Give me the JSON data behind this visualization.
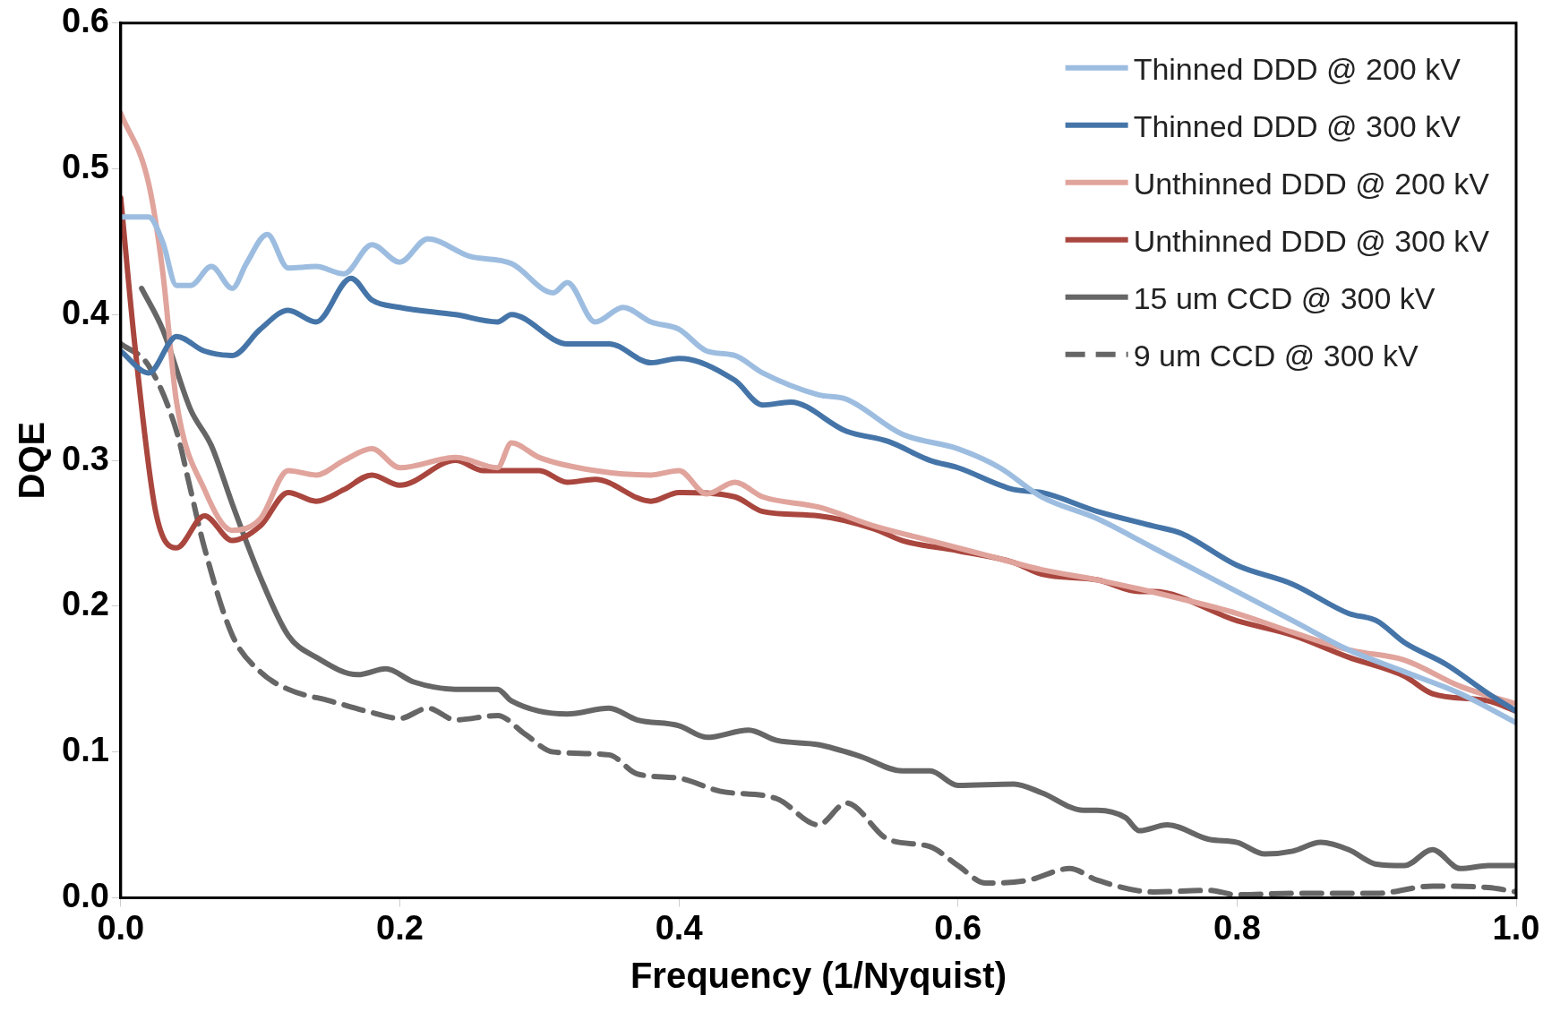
{
  "chart_data": {
    "type": "line",
    "xlabel": "Frequency (1/Nyquist)",
    "ylabel": "DQE",
    "xlim": [
      0,
      1
    ],
    "ylim": [
      0,
      0.6
    ],
    "xticks": [
      {
        "value": 0,
        "label": "0.0"
      },
      0.2,
      0.4,
      0.6,
      0.8,
      {
        "value": 1,
        "label": "1.0"
      }
    ],
    "yticks": [
      {
        "value": 0,
        "label": "0.0"
      },
      0.1,
      0.2,
      0.3,
      0.4,
      0.5,
      0.6
    ],
    "grid": false,
    "legend": "top right",
    "marker": "none",
    "series": [
      {
        "name": "Thinned DDD @ 200 kV",
        "color": "#9dbde0",
        "x": [
          0,
          0.02,
          0.03,
          0.04,
          0.05,
          0.065,
          0.08,
          0.09,
          0.105,
          0.12,
          0.14,
          0.16,
          0.18,
          0.2,
          0.22,
          0.25,
          0.28,
          0.31,
          0.32,
          0.34,
          0.36,
          0.38,
          0.4,
          0.42,
          0.44,
          0.46,
          0.5,
          0.52,
          0.56,
          0.6,
          0.63,
          0.66,
          0.7,
          0.74,
          0.78,
          0.8,
          0.84,
          0.88,
          0.92,
          0.96,
          1.0
        ],
        "values": [
          0.467,
          0.467,
          0.45,
          0.42,
          0.42,
          0.433,
          0.418,
          0.435,
          0.455,
          0.432,
          0.433,
          0.428,
          0.448,
          0.436,
          0.452,
          0.44,
          0.435,
          0.415,
          0.422,
          0.395,
          0.405,
          0.395,
          0.39,
          0.375,
          0.372,
          0.36,
          0.345,
          0.342,
          0.318,
          0.308,
          0.295,
          0.275,
          0.26,
          0.24,
          0.22,
          0.21,
          0.19,
          0.17,
          0.155,
          0.14,
          0.12
        ]
      },
      {
        "name": "Thinned DDD @ 300 kV",
        "color": "#4575a8",
        "x": [
          0,
          0.02,
          0.04,
          0.06,
          0.08,
          0.1,
          0.12,
          0.14,
          0.165,
          0.18,
          0.2,
          0.24,
          0.27,
          0.28,
          0.32,
          0.35,
          0.38,
          0.4,
          0.44,
          0.46,
          0.48,
          0.52,
          0.55,
          0.58,
          0.6,
          0.64,
          0.66,
          0.7,
          0.74,
          0.76,
          0.8,
          0.84,
          0.88,
          0.9,
          0.92,
          0.95,
          0.98,
          1.0
        ],
        "values": [
          0.375,
          0.36,
          0.385,
          0.375,
          0.372,
          0.39,
          0.403,
          0.395,
          0.425,
          0.41,
          0.405,
          0.4,
          0.395,
          0.4,
          0.38,
          0.38,
          0.367,
          0.37,
          0.355,
          0.338,
          0.34,
          0.32,
          0.313,
          0.3,
          0.295,
          0.28,
          0.278,
          0.265,
          0.255,
          0.25,
          0.228,
          0.215,
          0.195,
          0.19,
          0.175,
          0.16,
          0.14,
          0.128
        ]
      },
      {
        "name": "Unthinned DDD @ 200 kV",
        "color": "#e0a49c",
        "x": [
          0,
          0.02,
          0.03,
          0.04,
          0.06,
          0.08,
          0.1,
          0.12,
          0.14,
          0.16,
          0.18,
          0.2,
          0.24,
          0.27,
          0.28,
          0.3,
          0.34,
          0.38,
          0.4,
          0.42,
          0.44,
          0.46,
          0.5,
          0.54,
          0.58,
          0.62,
          0.66,
          0.7,
          0.76,
          0.8,
          0.84,
          0.88,
          0.92,
          0.96,
          1.0
        ],
        "values": [
          0.538,
          0.49,
          0.43,
          0.34,
          0.28,
          0.252,
          0.26,
          0.293,
          0.29,
          0.3,
          0.308,
          0.295,
          0.302,
          0.295,
          0.312,
          0.302,
          0.293,
          0.29,
          0.293,
          0.277,
          0.285,
          0.275,
          0.268,
          0.255,
          0.245,
          0.235,
          0.225,
          0.218,
          0.205,
          0.195,
          0.182,
          0.17,
          0.163,
          0.145,
          0.133
        ]
      },
      {
        "name": "Unthinned DDD @ 300 kV",
        "color": "#a9463e",
        "x": [
          0,
          0.01,
          0.025,
          0.04,
          0.06,
          0.08,
          0.1,
          0.12,
          0.14,
          0.16,
          0.18,
          0.2,
          0.24,
          0.26,
          0.3,
          0.32,
          0.34,
          0.38,
          0.4,
          0.44,
          0.46,
          0.5,
          0.54,
          0.56,
          0.6,
          0.64,
          0.66,
          0.7,
          0.73,
          0.74,
          0.8,
          0.84,
          0.88,
          0.92,
          0.94,
          0.98,
          1.0
        ],
        "values": [
          0.48,
          0.38,
          0.265,
          0.24,
          0.262,
          0.245,
          0.255,
          0.278,
          0.272,
          0.28,
          0.29,
          0.283,
          0.3,
          0.293,
          0.293,
          0.285,
          0.287,
          0.272,
          0.278,
          0.275,
          0.265,
          0.262,
          0.253,
          0.245,
          0.238,
          0.23,
          0.222,
          0.218,
          0.21,
          0.21,
          0.19,
          0.18,
          0.165,
          0.152,
          0.14,
          0.135,
          0.128
        ]
      },
      {
        "name": "15 um CCD @ 300 kV",
        "color": "#666666",
        "x": [
          0.015,
          0.03,
          0.05,
          0.065,
          0.08,
          0.1,
          0.12,
          0.14,
          0.17,
          0.19,
          0.21,
          0.24,
          0.27,
          0.28,
          0.32,
          0.35,
          0.37,
          0.4,
          0.42,
          0.45,
          0.47,
          0.5,
          0.53,
          0.56,
          0.58,
          0.6,
          0.64,
          0.66,
          0.69,
          0.7,
          0.72,
          0.73,
          0.75,
          0.78,
          0.8,
          0.82,
          0.84,
          0.86,
          0.88,
          0.9,
          0.92,
          0.94,
          0.96,
          0.98,
          1.0
        ],
        "values": [
          0.418,
          0.39,
          0.335,
          0.31,
          0.27,
          0.22,
          0.18,
          0.165,
          0.153,
          0.157,
          0.148,
          0.143,
          0.143,
          0.135,
          0.126,
          0.13,
          0.122,
          0.118,
          0.11,
          0.115,
          0.108,
          0.105,
          0.097,
          0.087,
          0.087,
          0.077,
          0.078,
          0.072,
          0.06,
          0.06,
          0.055,
          0.046,
          0.05,
          0.04,
          0.038,
          0.03,
          0.032,
          0.038,
          0.033,
          0.023,
          0.022,
          0.033,
          0.02,
          0.022,
          0.022
        ]
      },
      {
        "name": "9 um CCD @ 300 kV",
        "color": "#666666",
        "line_style": "dashed",
        "x": [
          0,
          0.02,
          0.04,
          0.05,
          0.06,
          0.08,
          0.1,
          0.12,
          0.15,
          0.18,
          0.2,
          0.22,
          0.24,
          0.27,
          0.29,
          0.31,
          0.35,
          0.37,
          0.4,
          0.43,
          0.47,
          0.5,
          0.52,
          0.55,
          0.58,
          0.6,
          0.62,
          0.65,
          0.68,
          0.7,
          0.74,
          0.78,
          0.8,
          0.84,
          0.9,
          0.94,
          0.98,
          1.0
        ],
        "values": [
          0.38,
          0.365,
          0.32,
          0.28,
          0.24,
          0.18,
          0.155,
          0.143,
          0.135,
          0.127,
          0.123,
          0.13,
          0.122,
          0.125,
          0.112,
          0.1,
          0.098,
          0.085,
          0.082,
          0.073,
          0.068,
          0.05,
          0.065,
          0.04,
          0.035,
          0.022,
          0.01,
          0.012,
          0.02,
          0.012,
          0.004,
          0.005,
          0.002,
          0.003,
          0.003,
          0.008,
          0.007,
          0.004
        ]
      }
    ]
  }
}
